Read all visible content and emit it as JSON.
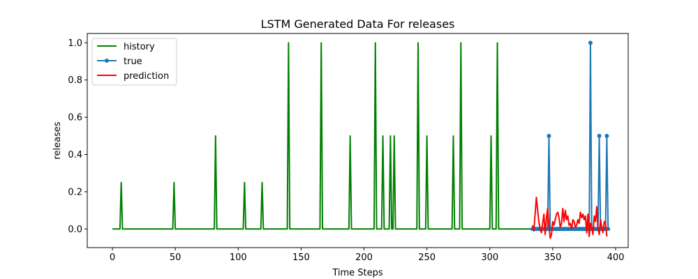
{
  "chart_data": {
    "type": "line",
    "title": "LSTM Generated Data For releases",
    "xlabel": "Time Steps",
    "ylabel": "releases",
    "xlim": [
      -20,
      410
    ],
    "ylim": [
      -0.1,
      1.05
    ],
    "x_ticks": [
      0,
      50,
      100,
      150,
      200,
      250,
      300,
      350,
      400
    ],
    "x_tick_labels": [
      "0",
      "50",
      "100",
      "150",
      "200",
      "250",
      "300",
      "350",
      "400"
    ],
    "y_ticks": [
      0.0,
      0.2,
      0.4,
      0.6,
      0.8,
      1.0
    ],
    "y_tick_labels": [
      "0.0",
      "0.2",
      "0.4",
      "0.6",
      "0.8",
      "1.0"
    ],
    "grid": false,
    "legend_placement": "upper-left",
    "series": [
      {
        "name": "history",
        "color": "#008000",
        "marker": "none",
        "start": 0,
        "end": 333,
        "spikes": [
          {
            "x": 7,
            "y": 0.25
          },
          {
            "x": 49,
            "y": 0.25
          },
          {
            "x": 82,
            "y": 0.5
          },
          {
            "x": 105,
            "y": 0.25
          },
          {
            "x": 119,
            "y": 0.25
          },
          {
            "x": 140,
            "y": 1.0
          },
          {
            "x": 166,
            "y": 1.0
          },
          {
            "x": 189,
            "y": 0.5
          },
          {
            "x": 209,
            "y": 1.0
          },
          {
            "x": 215,
            "y": 0.5
          },
          {
            "x": 221,
            "y": 0.5
          },
          {
            "x": 224,
            "y": 0.5
          },
          {
            "x": 243,
            "y": 1.0
          },
          {
            "x": 250,
            "y": 0.5
          },
          {
            "x": 271,
            "y": 0.5
          },
          {
            "x": 277,
            "y": 1.0
          },
          {
            "x": 301,
            "y": 0.5
          },
          {
            "x": 306,
            "y": 1.0
          }
        ]
      },
      {
        "name": "true",
        "color": "#1f77b4",
        "marker": "circle",
        "start": 334,
        "end": 394,
        "spikes": [
          {
            "x": 347,
            "y": 0.5
          },
          {
            "x": 380,
            "y": 1.0
          },
          {
            "x": 387,
            "y": 0.5
          },
          {
            "x": 393,
            "y": 0.5
          }
        ]
      },
      {
        "name": "prediction",
        "color": "#ff0000",
        "marker": "none",
        "x_start": 334,
        "values": [
          0.02,
          -0.01,
          0.08,
          0.17,
          0.1,
          0.04,
          0.0,
          -0.02,
          0.03,
          0.08,
          -0.03,
          0.06,
          0.11,
          0.02,
          -0.05,
          -0.03,
          0.04,
          0.02,
          0.05,
          0.08,
          0.09,
          0.06,
          0.01,
          0.03,
          0.11,
          0.04,
          0.1,
          0.05,
          0.07,
          0.02,
          0.03,
          0.0,
          0.05,
          0.04,
          0.01,
          0.02,
          0.05,
          0.03,
          0.09,
          0.06,
          0.08,
          0.05,
          0.07,
          -0.02,
          0.08,
          -0.04,
          0.03,
          0.01,
          -0.03,
          0.07,
          0.04,
          0.12,
          0.0,
          -0.03,
          0.05,
          0.01,
          -0.02,
          0.04,
          0.03,
          -0.04
        ]
      }
    ]
  }
}
